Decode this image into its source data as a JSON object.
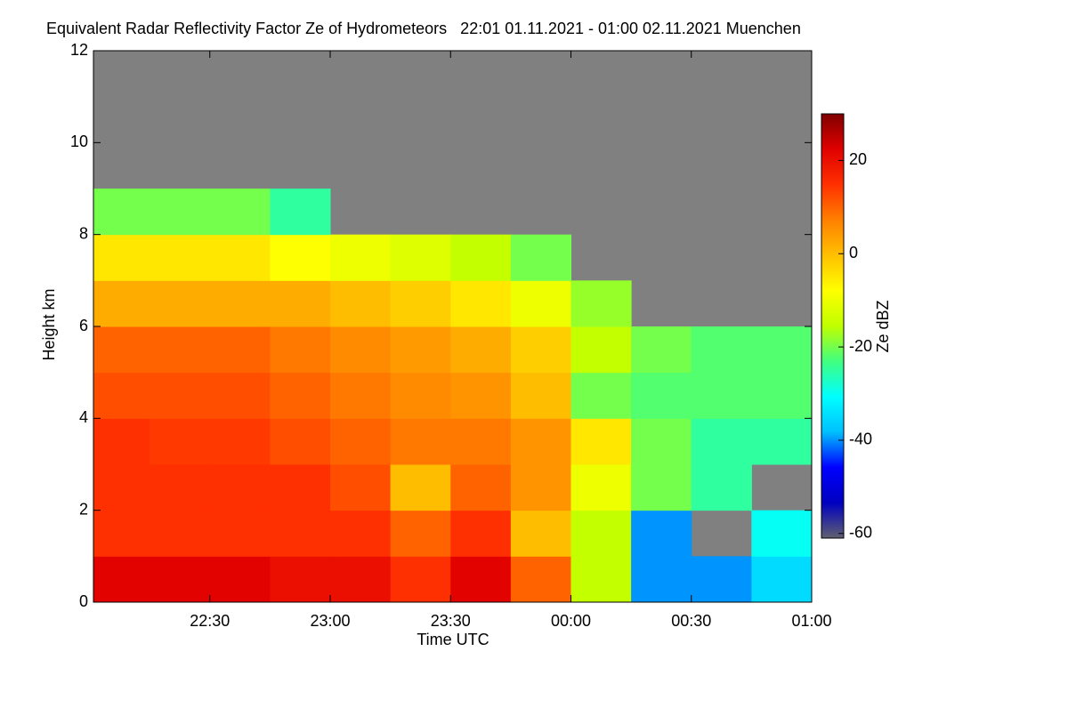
{
  "chart_data": {
    "type": "heatmap",
    "title": "Equivalent Radar Reflectivity Factor Ze of Hydrometeors   22:01 01.11.2021 - 01:00 02.11.2021 Muenchen",
    "xlabel": "Time UTC",
    "ylabel": "Height km",
    "colorbar_label": "Ze dBZ",
    "x_edges": [
      1,
      15,
      30,
      45,
      60,
      75,
      90,
      105,
      120,
      135,
      150,
      165,
      180
    ],
    "y_edges": [
      0,
      1,
      2,
      3,
      4,
      5,
      6,
      7,
      8,
      9,
      10,
      11,
      12
    ],
    "z": [
      [
        22,
        22,
        22,
        20,
        20,
        15,
        22,
        10,
        -15,
        -40,
        -40,
        -35
      ],
      [
        15,
        15,
        15,
        15,
        15,
        10,
        15,
        0,
        -15,
        -40,
        null,
        -30
      ],
      [
        15,
        15,
        15,
        15,
        12,
        0,
        10,
        5,
        -10,
        -20,
        -25,
        null
      ],
      [
        15,
        14,
        14,
        12,
        10,
        8,
        8,
        5,
        -5,
        -20,
        -25,
        -25
      ],
      [
        12,
        12,
        12,
        10,
        8,
        6,
        5,
        0,
        -20,
        -22,
        -22,
        -22
      ],
      [
        10,
        10,
        10,
        8,
        6,
        4,
        2,
        -2,
        -15,
        -20,
        -22,
        -22
      ],
      [
        2,
        2,
        2,
        2,
        0,
        -2,
        -5,
        -10,
        -18,
        null,
        null,
        null
      ],
      [
        -5,
        -5,
        -5,
        -8,
        -10,
        -12,
        -15,
        -20,
        null,
        null,
        null,
        null
      ],
      [
        -20,
        -20,
        -20,
        -25,
        null,
        null,
        null,
        null,
        null,
        null,
        null,
        null
      ],
      [
        null,
        null,
        null,
        null,
        null,
        null,
        null,
        null,
        null,
        null,
        null,
        null
      ],
      [
        null,
        null,
        null,
        null,
        null,
        null,
        null,
        null,
        null,
        null,
        null,
        null
      ],
      [
        null,
        null,
        null,
        null,
        null,
        null,
        null,
        null,
        null,
        null,
        null,
        null
      ]
    ],
    "xlim": [
      1,
      180
    ],
    "xticks": [
      {
        "value": 30,
        "label": "22:30"
      },
      {
        "value": 60,
        "label": "23:00"
      },
      {
        "value": 90,
        "label": "23:30"
      },
      {
        "value": 120,
        "label": "00:00"
      },
      {
        "value": 150,
        "label": "00:30"
      },
      {
        "value": 180,
        "label": "01:00"
      }
    ],
    "ylim": [
      0,
      12
    ],
    "yticks": [
      0,
      2,
      4,
      6,
      8,
      10,
      12
    ],
    "clim": [
      -61,
      30
    ],
    "cticks": [
      -60,
      -40,
      -20,
      0,
      20
    ],
    "colormap": [
      "#606070",
      "#0000c0",
      "#0000ff",
      "#00c0ff",
      "#00ffff",
      "#40ff80",
      "#c0ff00",
      "#ffff00",
      "#ffc000",
      "#ff8000",
      "#ff3000",
      "#e00000",
      "#800000"
    ],
    "missing_color": "#808080"
  }
}
